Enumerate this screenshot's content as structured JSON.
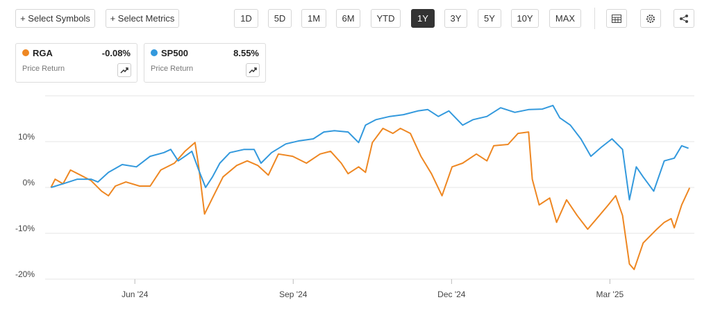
{
  "toolbar": {
    "actions": [
      "+ Select Symbols",
      "+ Select Metrics"
    ],
    "periods": [
      "1D",
      "5D",
      "1M",
      "6M",
      "YTD",
      "1Y",
      "3Y",
      "5Y",
      "10Y",
      "MAX"
    ],
    "active_period": "1Y"
  },
  "chart_data": {
    "type": "line",
    "grid": true,
    "xlim": [
      3.3,
      15.6
    ],
    "xticks": [
      {
        "value": 5,
        "label": "Jun '24"
      },
      {
        "value": 8,
        "label": "Sep '24"
      },
      {
        "value": 11,
        "label": "Dec '24"
      },
      {
        "value": 14,
        "label": "Mar '25"
      }
    ],
    "ylim": [
      -20,
      20
    ],
    "yticks": [
      {
        "value": -20,
        "label": "-20%"
      },
      {
        "value": -10,
        "label": "-10%"
      },
      {
        "value": 0,
        "label": "0%"
      },
      {
        "value": 10,
        "label": "10%"
      }
    ],
    "series": [
      {
        "name": "RGA",
        "color": "#ee8722",
        "change_label": "-0.08%",
        "metric": "Price Return",
        "x": [
          3.41,
          3.49,
          3.64,
          3.78,
          3.97,
          4.17,
          4.37,
          4.5,
          4.63,
          4.83,
          5.09,
          5.29,
          5.49,
          5.75,
          5.95,
          6.14,
          6.21,
          6.32,
          6.47,
          6.67,
          6.93,
          7.13,
          7.33,
          7.53,
          7.72,
          7.99,
          8.25,
          8.51,
          8.71,
          8.91,
          9.04,
          9.24,
          9.37,
          9.5,
          9.7,
          9.89,
          10.03,
          10.22,
          10.42,
          10.62,
          10.82,
          11.01,
          11.21,
          11.47,
          11.67,
          11.8,
          12.07,
          12.26,
          12.46,
          12.53,
          12.66,
          12.86,
          12.99,
          13.18,
          13.38,
          13.58,
          13.78,
          13.97,
          14.11,
          14.24,
          14.37,
          14.46,
          14.63,
          14.89,
          15.03,
          15.16,
          15.22,
          15.36,
          15.51
        ],
        "values": [
          0,
          1.8,
          0.8,
          3.8,
          2.7,
          1.5,
          -0.8,
          -1.8,
          0.3,
          1.2,
          0.3,
          0.3,
          3.8,
          5.3,
          7.9,
          9.8,
          4.5,
          -5.8,
          -2.3,
          2.3,
          4.8,
          5.8,
          4.8,
          2.7,
          7.3,
          6.8,
          5.3,
          7.3,
          7.9,
          5.3,
          3,
          4.5,
          3.3,
          9.8,
          12.9,
          11.8,
          12.9,
          11.8,
          6.8,
          3,
          -1.8,
          4.5,
          5.3,
          7.3,
          5.8,
          9.1,
          9.4,
          11.8,
          12.1,
          1.8,
          -3.8,
          -2.3,
          -7.6,
          -2.7,
          -6.1,
          -9.1,
          -6.4,
          -3.8,
          -1.8,
          -6.1,
          -16.7,
          -17.9,
          -12.1,
          -9.1,
          -7.6,
          -6.8,
          -8.8,
          -3.8,
          -0.08
        ]
      },
      {
        "name": "SP500",
        "color": "#3399dd",
        "change_label": "8.55%",
        "metric": "Price Return",
        "x": [
          3.41,
          3.64,
          3.91,
          4.17,
          4.3,
          4.5,
          4.76,
          5.03,
          5.29,
          5.55,
          5.68,
          5.82,
          5.95,
          6.08,
          6.21,
          6.34,
          6.47,
          6.61,
          6.8,
          7.07,
          7.26,
          7.39,
          7.59,
          7.86,
          8.12,
          8.38,
          8.58,
          8.78,
          9.04,
          9.24,
          9.37,
          9.57,
          9.83,
          10.09,
          10.36,
          10.55,
          10.75,
          10.95,
          11.21,
          11.41,
          11.67,
          11.93,
          12.2,
          12.46,
          12.72,
          12.92,
          13.05,
          13.25,
          13.45,
          13.64,
          13.84,
          14.04,
          14.24,
          14.37,
          14.5,
          14.63,
          14.83,
          15.03,
          15.22,
          15.36,
          15.49
        ],
        "values": [
          0,
          0.8,
          1.8,
          1.8,
          1.2,
          3.3,
          5,
          4.5,
          6.8,
          7.6,
          8.3,
          5.8,
          6.8,
          7.9,
          3.8,
          0,
          2.3,
          5.3,
          7.6,
          8.3,
          8.3,
          5.3,
          7.6,
          9.5,
          10.2,
          10.6,
          12.1,
          12.4,
          12.1,
          9.8,
          13.6,
          14.8,
          15.5,
          15.9,
          16.7,
          17,
          15.5,
          16.7,
          13.6,
          14.8,
          15.5,
          17.4,
          16.4,
          17,
          17.1,
          17.9,
          15.2,
          13.6,
          10.6,
          6.8,
          8.8,
          10.6,
          8.3,
          -2.7,
          4.5,
          2.3,
          -0.8,
          5.8,
          6.4,
          9.1,
          8.55
        ]
      }
    ]
  }
}
